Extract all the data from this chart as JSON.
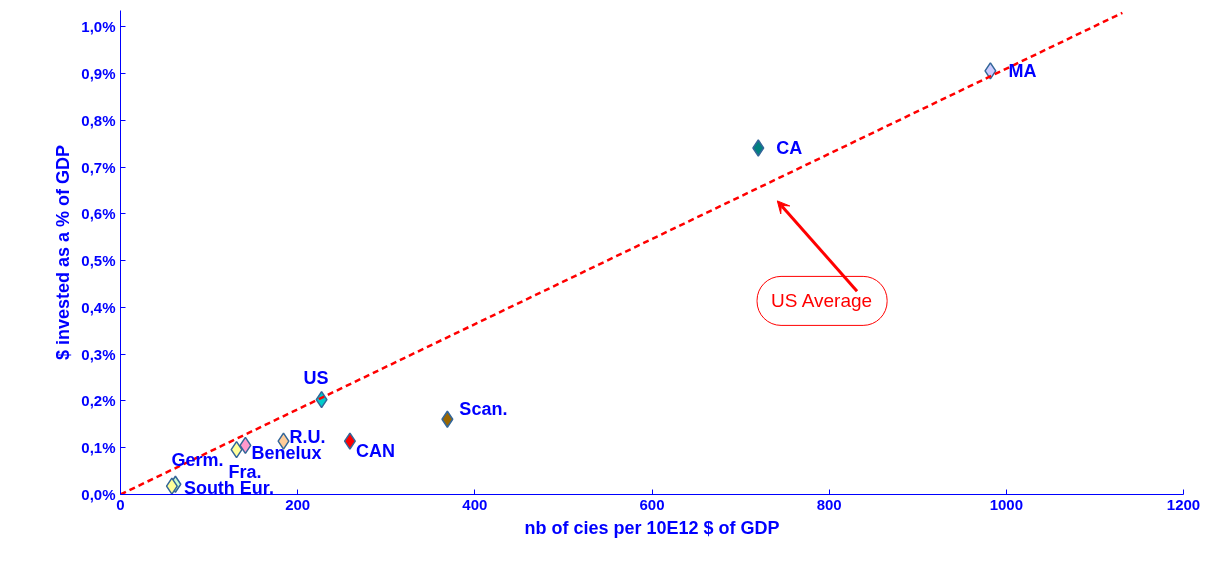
{
  "chart_data": {
    "type": "scatter",
    "xlabel": "nb of cies per 10E12 $ of GDP",
    "ylabel": "$ invested as a % of GDP",
    "xlim": [
      0,
      1200
    ],
    "xticks": [
      0,
      200,
      400,
      600,
      800,
      1000,
      1200
    ],
    "ylim": [
      0,
      1.035
    ],
    "yticks": [
      {
        "value": 0,
        "label": "0,0%"
      },
      {
        "value": 0.1,
        "label": "0,1%"
      },
      {
        "value": 0.2,
        "label": "0,2%"
      },
      {
        "value": 0.3,
        "label": "0,3%"
      },
      {
        "value": 0.4,
        "label": "0,4%"
      },
      {
        "value": 0.5,
        "label": "0,5%"
      },
      {
        "value": 0.6,
        "label": "0,6%"
      },
      {
        "value": 0.7,
        "label": "0,7%"
      },
      {
        "value": 0.8,
        "label": "0,8%"
      },
      {
        "value": 0.9,
        "label": "0,9%"
      },
      {
        "value": 1.0,
        "label": "1,0%"
      }
    ],
    "grid": false,
    "marker": "diamond",
    "series": [
      {
        "name": "MA",
        "color": "#ccccff",
        "x": [
          982
        ],
        "values": [
          0.906
        ]
      },
      {
        "name": "CA",
        "color": "#008080",
        "x": [
          720
        ],
        "values": [
          0.741
        ]
      },
      {
        "name": "US",
        "color": "#00cccc",
        "x": [
          227
        ],
        "values": [
          0.203
        ]
      },
      {
        "name": "CAN",
        "color": "#ff0000",
        "x": [
          259
        ],
        "values": [
          0.114
        ]
      },
      {
        "name": "Scan.",
        "color": "#996600",
        "x": [
          369
        ],
        "values": [
          0.161
        ]
      },
      {
        "name": "R.U.",
        "color": "#ffcc99",
        "x": [
          184
        ],
        "values": [
          0.114
        ]
      },
      {
        "name": "Benelux",
        "color": "#ff99cc",
        "x": [
          141
        ],
        "values": [
          0.105
        ]
      },
      {
        "name": "Fra.",
        "color": "#ffff99",
        "x": [
          131
        ],
        "values": [
          0.096
        ]
      },
      {
        "name": "Germ.",
        "color": "#ccffcc",
        "x": [
          62
        ],
        "values": [
          0.022
        ]
      },
      {
        "name": "South Eur.",
        "color": "#ffff99",
        "x": [
          58
        ],
        "values": [
          0.018
        ]
      },
      {
        "type": "line",
        "color": "#ff0000",
        "line_style": "dashed",
        "marker": "none",
        "x": [
          0,
          1131
        ],
        "values": [
          0,
          1.03
        ]
      }
    ],
    "annotations": [
      "US Average"
    ]
  }
}
